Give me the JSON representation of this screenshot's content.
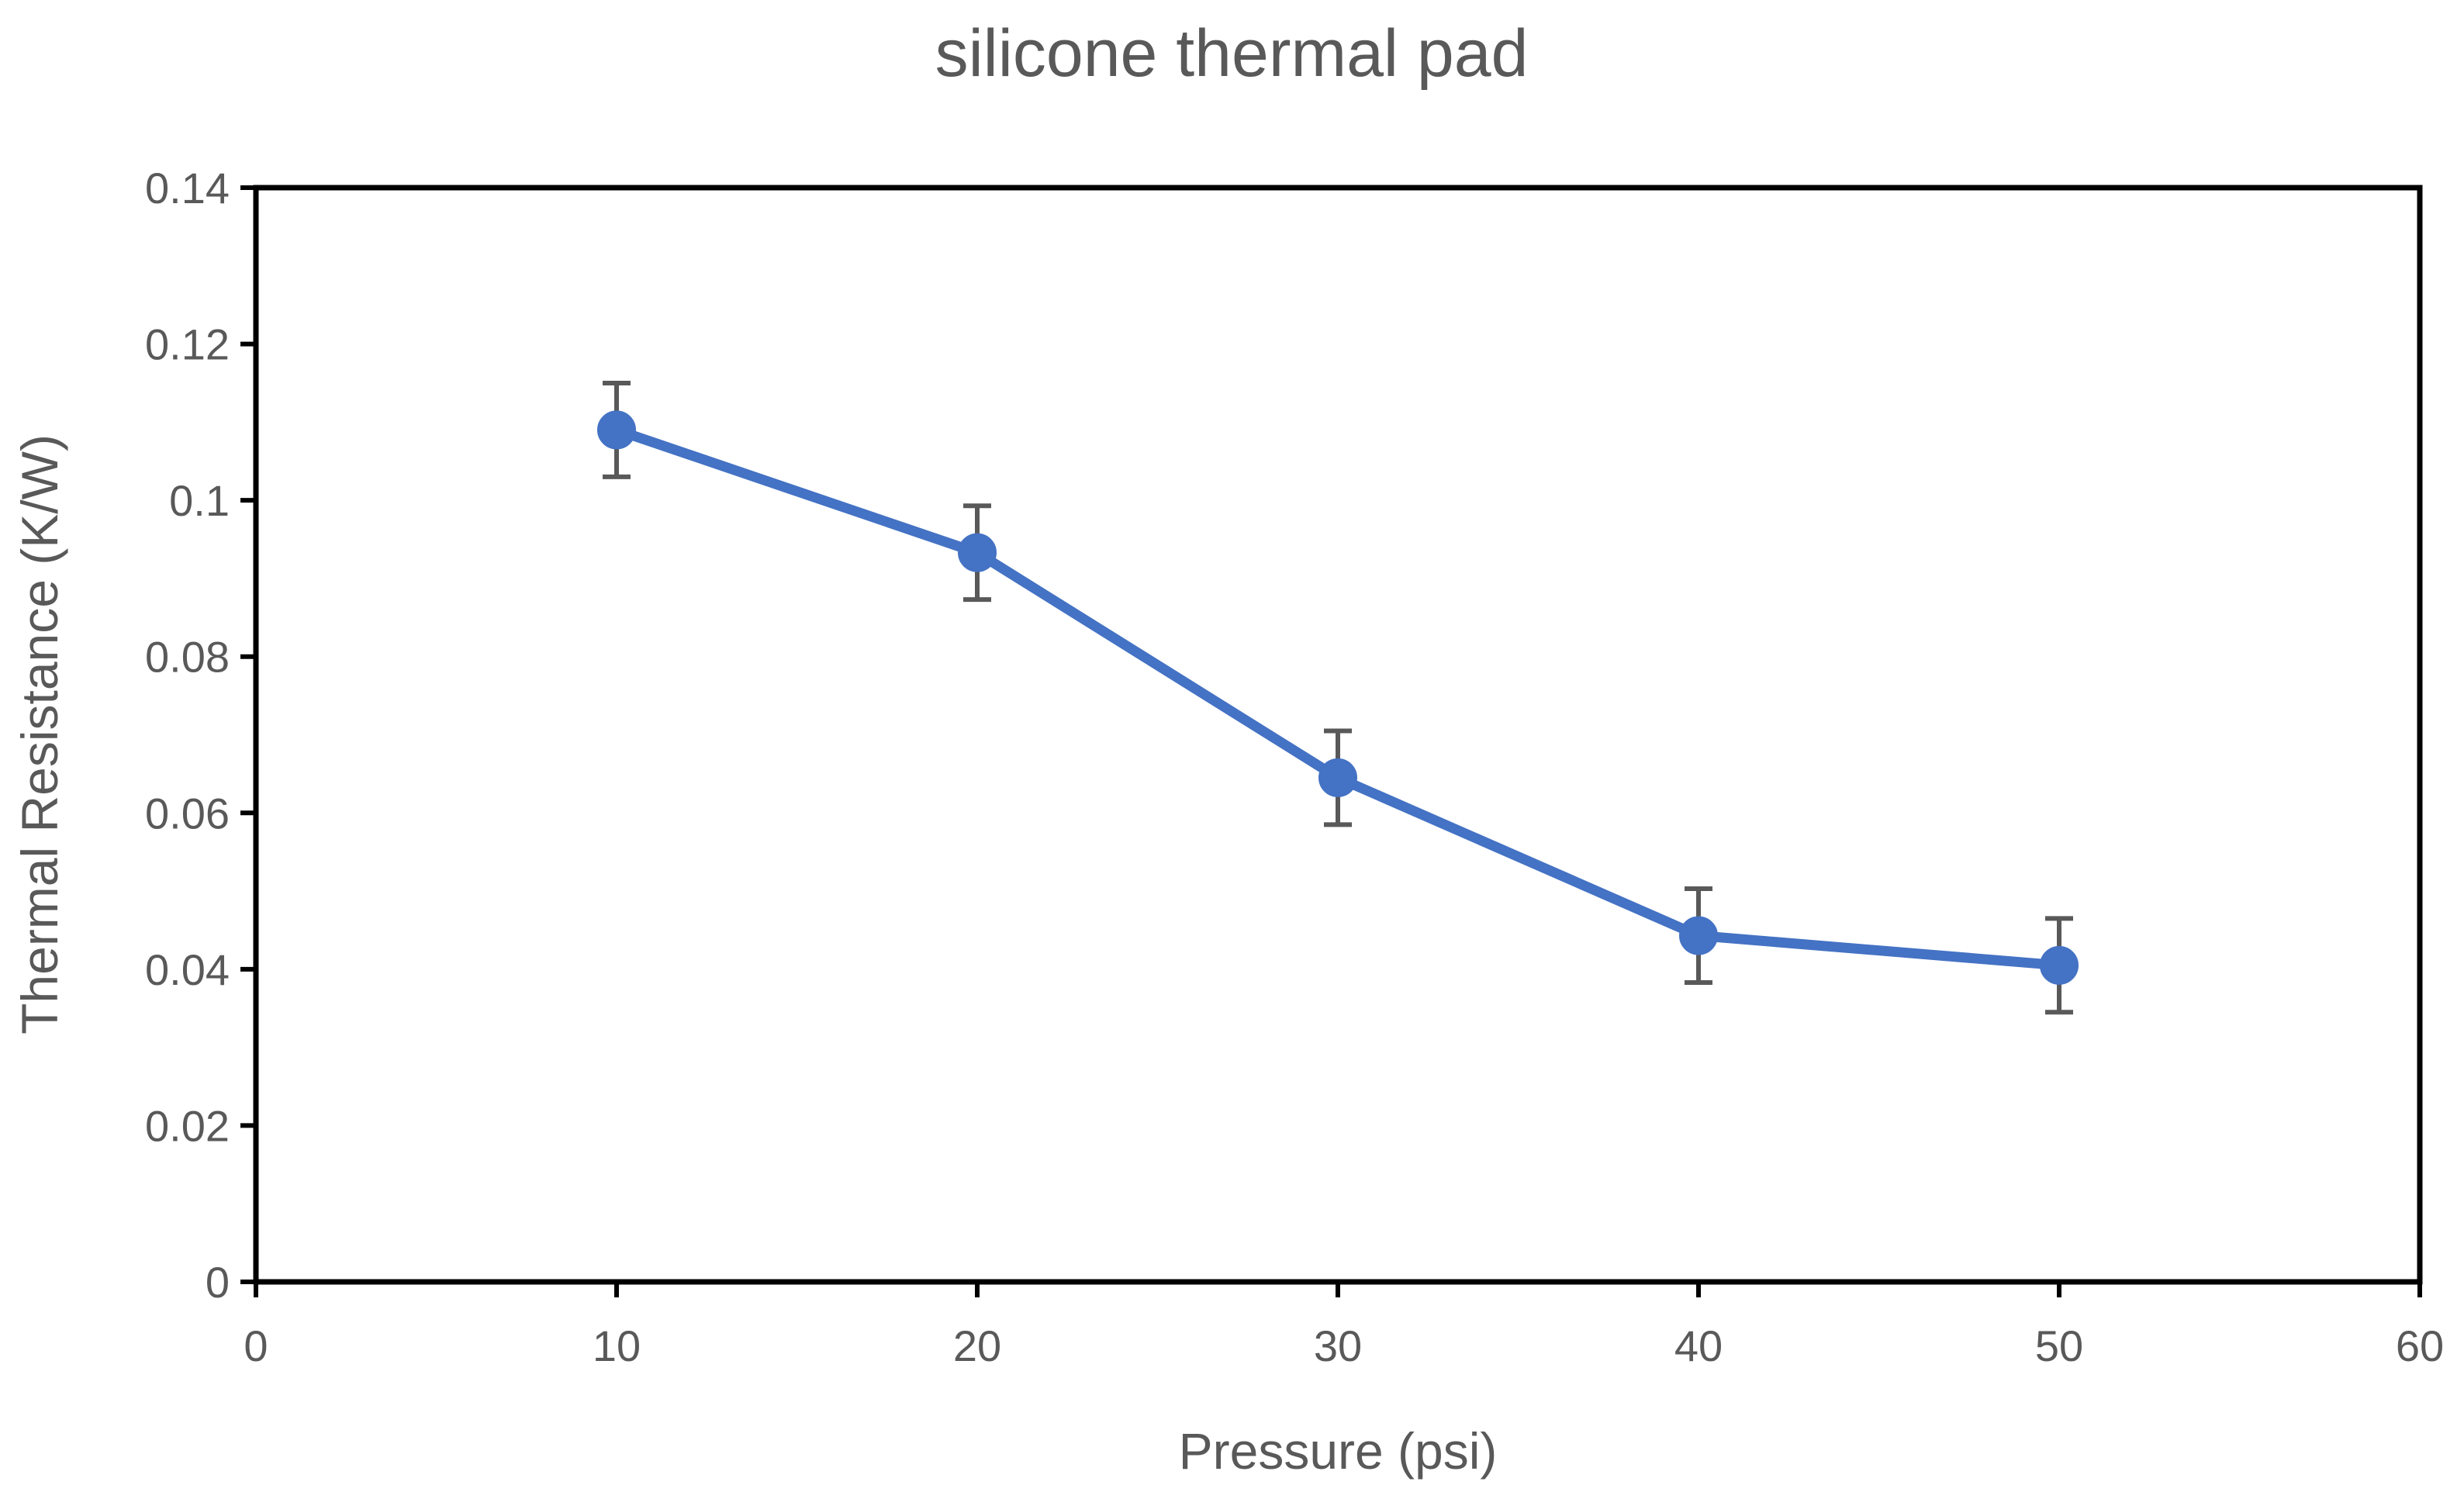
{
  "chart_data": {
    "type": "line",
    "title": "silicone thermal pad",
    "xlabel": "Pressure (psi)",
    "ylabel": "Thermal Resistance (K/W)",
    "xlim": [
      0,
      60
    ],
    "ylim": [
      0,
      0.14
    ],
    "x_ticks": [
      "0",
      "10",
      "20",
      "30",
      "40",
      "50",
      "60"
    ],
    "x_tick_values": [
      0,
      10,
      20,
      30,
      40,
      50,
      60
    ],
    "y_ticks": [
      "0",
      "0.02",
      "0.04",
      "0.06",
      "0.08",
      "0.1",
      "0.12",
      "0.14"
    ],
    "y_tick_values": [
      0,
      0.02,
      0.04,
      0.06,
      0.08,
      0.1,
      0.12,
      0.14
    ],
    "grid": false,
    "legend": "none",
    "series": [
      {
        "color": "#4472C4",
        "x": [
          10,
          20,
          30,
          40,
          50
        ],
        "y": [
          0.109,
          0.0933,
          0.0645,
          0.0443,
          0.0405
        ],
        "error": [
          0.006,
          0.006,
          0.006,
          0.006,
          0.006
        ]
      }
    ],
    "error_bar_color": "#595959",
    "frame_color": "#000000"
  }
}
